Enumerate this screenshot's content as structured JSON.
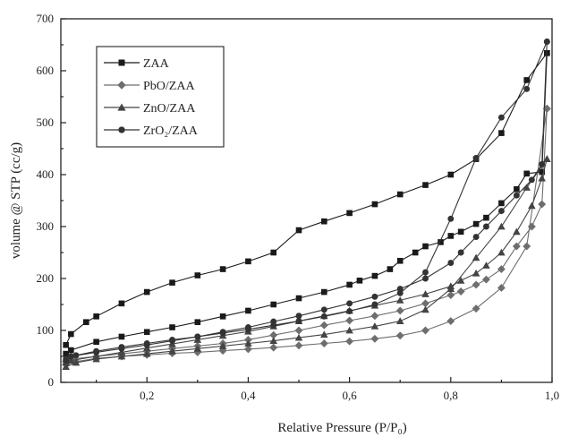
{
  "chart_data": {
    "type": "line",
    "xlabel": "Relative Pressure (P/P₀)",
    "ylabel": "volume @ STP (cc/g)",
    "xlim": [
      0.03,
      1.0
    ],
    "ylim": [
      0,
      700
    ],
    "x_ticks": [
      "0,2",
      "0,4",
      "0,6",
      "0,8",
      "1,0"
    ],
    "x_tick_values": [
      0.2,
      0.4,
      0.6,
      0.8,
      1.0
    ],
    "y_ticks": [
      "0",
      "100",
      "200",
      "300",
      "400",
      "500",
      "600",
      "700"
    ],
    "y_tick_values": [
      0,
      100,
      200,
      300,
      400,
      500,
      600,
      700
    ],
    "legend_position": "top-left",
    "series": [
      {
        "name": "ZAA",
        "marker": "square",
        "color": "#1a1a1a",
        "adsorption": [
          [
            0.04,
            72
          ],
          [
            0.05,
            93
          ],
          [
            0.08,
            116
          ],
          [
            0.1,
            127
          ],
          [
            0.15,
            152
          ],
          [
            0.2,
            174
          ],
          [
            0.25,
            192
          ],
          [
            0.3,
            206
          ],
          [
            0.35,
            218
          ],
          [
            0.4,
            233
          ],
          [
            0.45,
            250
          ],
          [
            0.5,
            293
          ],
          [
            0.55,
            310
          ],
          [
            0.6,
            326
          ],
          [
            0.65,
            343
          ],
          [
            0.7,
            362
          ],
          [
            0.75,
            380
          ],
          [
            0.8,
            400
          ],
          [
            0.85,
            430
          ],
          [
            0.9,
            480
          ],
          [
            0.95,
            582
          ],
          [
            0.99,
            634
          ]
        ],
        "desorption": [
          [
            0.99,
            634
          ],
          [
            0.98,
            405
          ],
          [
            0.95,
            402
          ],
          [
            0.93,
            372
          ],
          [
            0.9,
            345
          ],
          [
            0.87,
            317
          ],
          [
            0.85,
            305
          ],
          [
            0.82,
            290
          ],
          [
            0.8,
            282
          ],
          [
            0.78,
            270
          ],
          [
            0.75,
            262
          ],
          [
            0.73,
            250
          ],
          [
            0.7,
            234
          ],
          [
            0.68,
            218
          ],
          [
            0.65,
            205
          ],
          [
            0.62,
            196
          ],
          [
            0.6,
            188
          ],
          [
            0.55,
            174
          ],
          [
            0.5,
            162
          ],
          [
            0.45,
            150
          ],
          [
            0.4,
            138
          ],
          [
            0.35,
            127
          ],
          [
            0.3,
            116
          ],
          [
            0.25,
            106
          ],
          [
            0.2,
            97
          ],
          [
            0.15,
            88
          ],
          [
            0.1,
            78
          ],
          [
            0.05,
            62
          ],
          [
            0.04,
            55
          ]
        ]
      },
      {
        "name": "PbO/ZAA",
        "marker": "diamond",
        "color": "#6e6e6e",
        "adsorption": [
          [
            0.04,
            35
          ],
          [
            0.06,
            40
          ],
          [
            0.1,
            46
          ],
          [
            0.15,
            50
          ],
          [
            0.2,
            53
          ],
          [
            0.25,
            56
          ],
          [
            0.3,
            58
          ],
          [
            0.35,
            61
          ],
          [
            0.4,
            64
          ],
          [
            0.45,
            67
          ],
          [
            0.5,
            71
          ],
          [
            0.55,
            75
          ],
          [
            0.6,
            79
          ],
          [
            0.65,
            84
          ],
          [
            0.7,
            90
          ],
          [
            0.75,
            100
          ],
          [
            0.8,
            118
          ],
          [
            0.85,
            142
          ],
          [
            0.9,
            182
          ],
          [
            0.95,
            262
          ],
          [
            0.99,
            527
          ]
        ],
        "desorption": [
          [
            0.99,
            527
          ],
          [
            0.98,
            343
          ],
          [
            0.96,
            300
          ],
          [
            0.93,
            262
          ],
          [
            0.9,
            218
          ],
          [
            0.87,
            198
          ],
          [
            0.85,
            188
          ],
          [
            0.82,
            175
          ],
          [
            0.8,
            168
          ],
          [
            0.75,
            152
          ],
          [
            0.7,
            138
          ],
          [
            0.65,
            128
          ],
          [
            0.6,
            119
          ],
          [
            0.55,
            110
          ],
          [
            0.5,
            100
          ],
          [
            0.45,
            91
          ],
          [
            0.4,
            82
          ],
          [
            0.35,
            75
          ],
          [
            0.3,
            70
          ],
          [
            0.25,
            65
          ],
          [
            0.2,
            60
          ],
          [
            0.15,
            55
          ],
          [
            0.1,
            50
          ],
          [
            0.05,
            45
          ],
          [
            0.04,
            40
          ]
        ]
      },
      {
        "name": "ZnO/ZAA",
        "marker": "triangle",
        "color": "#444444",
        "adsorption": [
          [
            0.04,
            30
          ],
          [
            0.06,
            38
          ],
          [
            0.1,
            45
          ],
          [
            0.15,
            50
          ],
          [
            0.2,
            55
          ],
          [
            0.25,
            60
          ],
          [
            0.3,
            65
          ],
          [
            0.35,
            70
          ],
          [
            0.4,
            75
          ],
          [
            0.45,
            80
          ],
          [
            0.5,
            86
          ],
          [
            0.55,
            92
          ],
          [
            0.6,
            100
          ],
          [
            0.65,
            108
          ],
          [
            0.7,
            118
          ],
          [
            0.75,
            140
          ],
          [
            0.8,
            180
          ],
          [
            0.85,
            240
          ],
          [
            0.9,
            300
          ],
          [
            0.95,
            375
          ],
          [
            0.99,
            430
          ]
        ],
        "desorption": [
          [
            0.99,
            430
          ],
          [
            0.98,
            393
          ],
          [
            0.96,
            340
          ],
          [
            0.93,
            290
          ],
          [
            0.9,
            250
          ],
          [
            0.87,
            225
          ],
          [
            0.85,
            210
          ],
          [
            0.82,
            196
          ],
          [
            0.8,
            185
          ],
          [
            0.75,
            170
          ],
          [
            0.7,
            158
          ],
          [
            0.65,
            148
          ],
          [
            0.6,
            138
          ],
          [
            0.55,
            128
          ],
          [
            0.5,
            118
          ],
          [
            0.45,
            108
          ],
          [
            0.4,
            98
          ],
          [
            0.35,
            90
          ],
          [
            0.3,
            82
          ],
          [
            0.25,
            74
          ],
          [
            0.2,
            66
          ],
          [
            0.15,
            58
          ],
          [
            0.1,
            50
          ],
          [
            0.05,
            42
          ],
          [
            0.04,
            38
          ]
        ]
      },
      {
        "name": "ZrO₂/ZAA",
        "marker": "circle",
        "color": "#333333",
        "adsorption": [
          [
            0.04,
            42
          ],
          [
            0.06,
            52
          ],
          [
            0.1,
            60
          ],
          [
            0.15,
            68
          ],
          [
            0.2,
            75
          ],
          [
            0.25,
            82
          ],
          [
            0.3,
            88
          ],
          [
            0.35,
            95
          ],
          [
            0.4,
            102
          ],
          [
            0.45,
            110
          ],
          [
            0.5,
            118
          ],
          [
            0.55,
            127
          ],
          [
            0.6,
            137
          ],
          [
            0.65,
            150
          ],
          [
            0.7,
            172
          ],
          [
            0.75,
            212
          ],
          [
            0.8,
            315
          ],
          [
            0.85,
            432
          ],
          [
            0.9,
            510
          ],
          [
            0.95,
            565
          ],
          [
            0.99,
            656
          ]
        ],
        "desorption": [
          [
            0.99,
            656
          ],
          [
            0.98,
            420
          ],
          [
            0.96,
            390
          ],
          [
            0.93,
            360
          ],
          [
            0.9,
            330
          ],
          [
            0.87,
            300
          ],
          [
            0.85,
            280
          ],
          [
            0.82,
            250
          ],
          [
            0.8,
            230
          ],
          [
            0.75,
            200
          ],
          [
            0.7,
            180
          ],
          [
            0.65,
            165
          ],
          [
            0.6,
            152
          ],
          [
            0.55,
            140
          ],
          [
            0.5,
            128
          ],
          [
            0.45,
            117
          ],
          [
            0.4,
            106
          ],
          [
            0.35,
            97
          ],
          [
            0.3,
            88
          ],
          [
            0.25,
            80
          ],
          [
            0.2,
            72
          ],
          [
            0.15,
            65
          ],
          [
            0.1,
            58
          ],
          [
            0.05,
            50
          ],
          [
            0.04,
            45
          ]
        ]
      }
    ]
  }
}
